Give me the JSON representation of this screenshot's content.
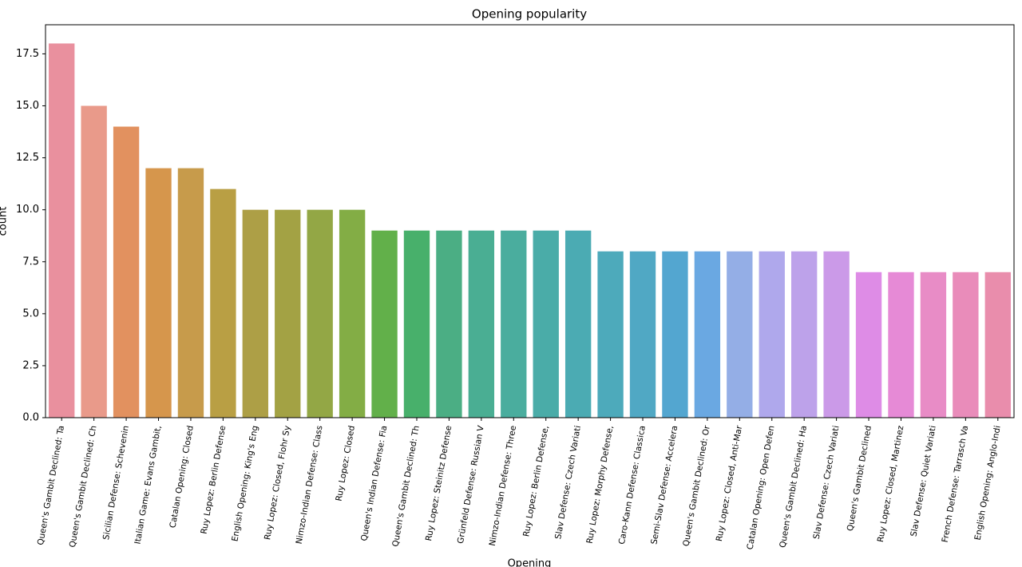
{
  "chart_data": {
    "type": "bar",
    "title": "Opening popularity",
    "x_label": "Opening",
    "y_label": "count",
    "categories": [
      "Queen's Gambit Declined: Ta",
      "Queen's Gambit Declined: Ch",
      "Sicilian Defense: Schevenin",
      "Italian Game: Evans Gambit,",
      "Catalan Opening: Closed",
      "Ruy Lopez: Berlin Defense",
      "English Opening: King's Eng",
      "Ruy Lopez: Closed, Flohr Sy",
      "Nimzo-Indian Defense: Class",
      "Ruy Lopez: Closed",
      "Queen's Indian Defense: Fia",
      "Queen's Gambit Declined: Th",
      "Ruy Lopez: Steinitz Defense",
      "Grünfeld Defense: Russian V",
      "Nimzo-Indian Defense: Three",
      "Ruy Lopez: Berlin Defense,",
      "Slav Defense: Czech Variati",
      "Ruy Lopez: Morphy Defense,",
      "Caro-Kann Defense: Classica",
      "Semi-Slav Defense: Accelera",
      "Queen's Gambit Declined: Or",
      "Ruy Lopez: Closed, Anti-Mar",
      "Catalan Opening: Open Defen",
      "Queen's Gambit Declined: Ha",
      "Slav Defense: Czech Variati",
      "Queen's Gambit Declined",
      "Ruy Lopez: Closed, Martinez",
      "Slav Defense: Quiet Variati",
      "French Defense: Tarrasch Va",
      "English Opening: Anglo-Indi"
    ],
    "values": [
      18,
      15,
      14,
      12,
      12,
      11,
      10,
      10,
      10,
      10,
      9,
      9,
      9,
      9,
      9,
      9,
      9,
      8,
      8,
      8,
      8,
      8,
      8,
      8,
      8,
      7,
      7,
      7,
      7,
      7
    ],
    "colors": [
      "#e9909e",
      "#e99a8a",
      "#e2915f",
      "#d6964c",
      "#c79b4b",
      "#b99f44",
      "#ad9f46",
      "#a3a244",
      "#93a745",
      "#83ad45",
      "#62b04a",
      "#48b06b",
      "#4bae84",
      "#4aae93",
      "#4aad9e",
      "#4aaca8",
      "#4babb3",
      "#4daabb",
      "#50a8c4",
      "#53a6d0",
      "#6aa8e2",
      "#94aee6",
      "#afa8ec",
      "#bda2ea",
      "#cb9ae8",
      "#de8ce6",
      "#e68ad6",
      "#e88cc6",
      "#e98cba",
      "#e98dac"
    ],
    "ylim": [
      0,
      18.9
    ],
    "yticks": [
      {
        "value": 0,
        "label": "0.0"
      },
      2.5,
      {
        "value": 5,
        "label": "5.0"
      },
      7.5,
      {
        "value": 10,
        "label": "10.0"
      },
      12.5,
      {
        "value": 15,
        "label": "15.0"
      },
      17.5
    ]
  }
}
